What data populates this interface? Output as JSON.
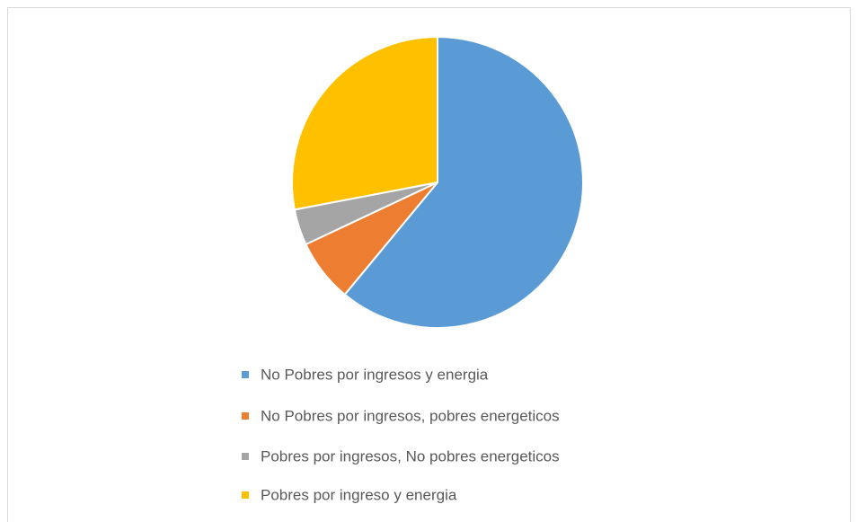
{
  "chart_data": {
    "type": "pie",
    "categories": [
      "No Pobres por ingresos y energia",
      "No Pobres por ingresos, pobres energeticos",
      "Pobres por ingresos, No pobres energeticos",
      "Pobres por ingreso y energia"
    ],
    "values": [
      61,
      7,
      4,
      28
    ],
    "colors": [
      "#5b9bd5",
      "#ed7d31",
      "#a5a5a5",
      "#ffc000"
    ],
    "legend": "bottom"
  }
}
